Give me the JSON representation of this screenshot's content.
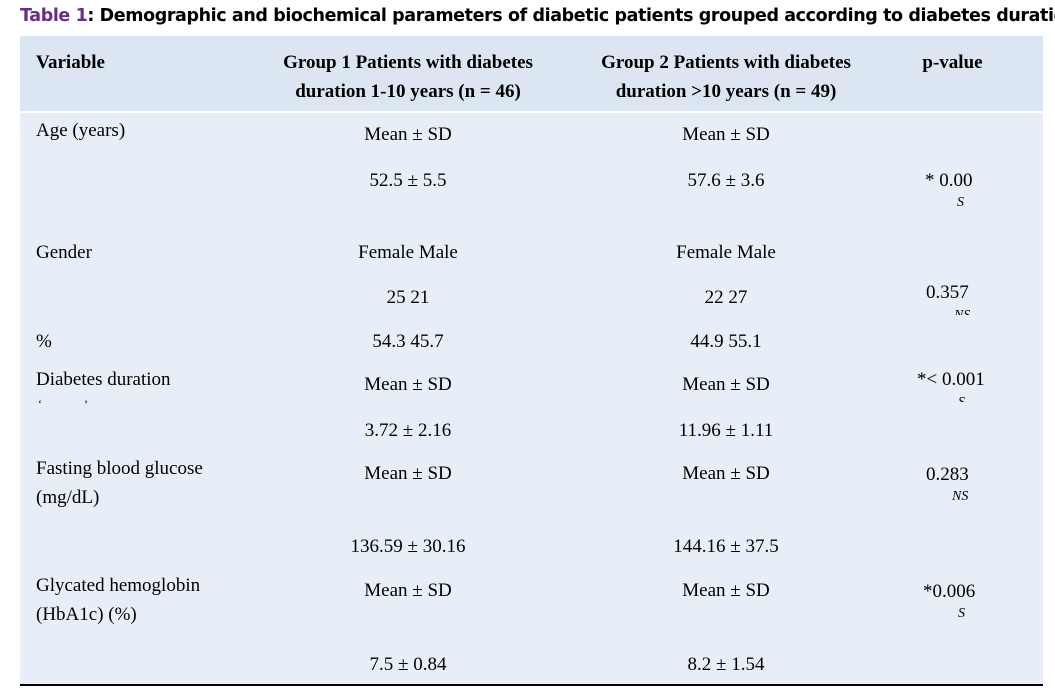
{
  "caption": {
    "label": "Table 1",
    "text": ": Demographic and biochemical parameters of diabetic patients grouped according to diabetes duration"
  },
  "header": {
    "variable": "Variable",
    "group1_line1": "Group 1 Patients with diabetes",
    "group1_line2": "duration 1-10 years (n = 46)",
    "group2_line1": "Group 2 Patients with diabetes",
    "group2_line2": "duration >10 years (n = 49)",
    "pvalue": "p-value"
  },
  "rows": {
    "age": {
      "label": "Age (years)",
      "g1_stat": "Mean ± SD",
      "g2_stat": "Mean ± SD",
      "g1_val": "52.5 ± 5.5",
      "g2_val": "57.6 ± 3.6",
      "p": "* 0.00",
      "sig": "S"
    },
    "gender": {
      "label": "Gender",
      "g1_head": "Female Male",
      "g2_head": "Female Male",
      "g1_n": "25 21",
      "g2_n": "22 27",
      "p": "0.357",
      "sig": "NS",
      "pct_label": "%",
      "g1_pct": "54.3 45.7",
      "g2_pct": "44.9 55.1"
    },
    "duration": {
      "label": "Diabetes duration",
      "g1_stat": "Mean ± SD",
      "g2_stat": "Mean ± SD",
      "g1_val": "3.72 ± 2.16",
      "g2_val": "11.96 ± 1.11",
      "p": "*< 0.001",
      "sig": "S"
    },
    "glucose": {
      "label_line1": "Fasting blood glucose",
      "label_line2": "(mg/dL)",
      "g1_stat": "Mean ± SD",
      "g2_stat": "Mean ± SD",
      "g1_val": "136.59 ± 30.16",
      "g2_val": "144.16 ± 37.5",
      "p": "0.283",
      "sig": "NS"
    },
    "hba1c": {
      "label_line1": "Glycated hemoglobin",
      "label_line2": "(HbA1c) (%)",
      "g1_stat": "Mean ± SD",
      "g2_stat": "Mean ± SD",
      "g1_val": "7.5 ± 0.84",
      "g2_val": "8.2 ± 1.54",
      "p": "*0.006",
      "sig": "S"
    }
  }
}
